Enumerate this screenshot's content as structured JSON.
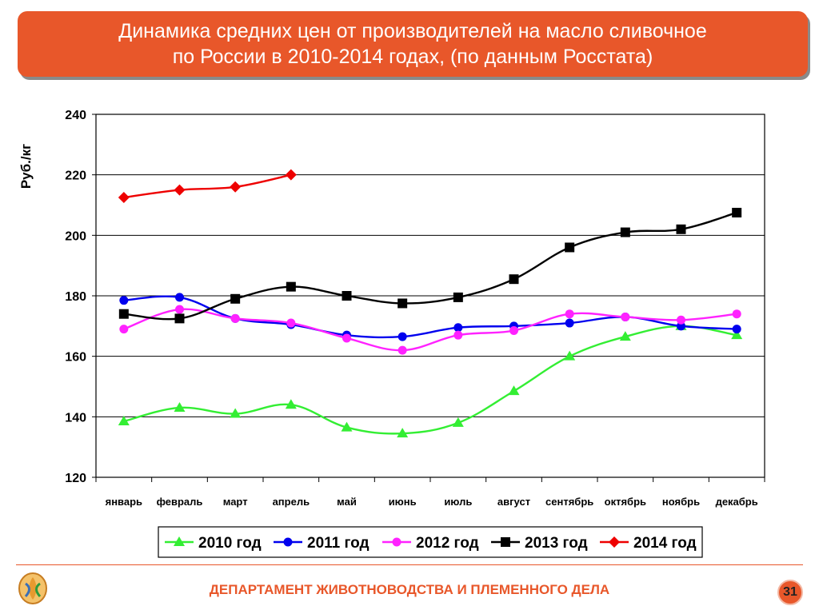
{
  "header": {
    "title_line1": "Динамика средних цен от производителей на масло сливочное",
    "title_line2": "по России в 2010-2014 годах, (по данным Росстата)"
  },
  "chart_data": {
    "type": "line",
    "title": "",
    "ylabel": "Руб./кг",
    "xlabel": "",
    "ylim": [
      120,
      240
    ],
    "yticks": [
      120,
      140,
      160,
      180,
      200,
      220,
      240
    ],
    "grid": true,
    "legend_placement": "bottom",
    "categories": [
      "январь",
      "февраль",
      "март",
      "апрель",
      "май",
      "июнь",
      "июль",
      "август",
      "сентябрь",
      "октябрь",
      "ноябрь",
      "декабрь"
    ],
    "series": [
      {
        "name": "2010 год",
        "color": "#33ee33",
        "marker": "triangle",
        "values": [
          138.5,
          143,
          141,
          144,
          136.5,
          134.5,
          138,
          148.5,
          160,
          166.5,
          170,
          167
        ]
      },
      {
        "name": "2011 год",
        "color": "#0000ee",
        "marker": "circle",
        "values": [
          178.5,
          179.5,
          172.5,
          170.5,
          167,
          166.5,
          169.5,
          170,
          171,
          173,
          170,
          169
        ]
      },
      {
        "name": "2012 год",
        "color": "#ff22ff",
        "marker": "circle",
        "values": [
          169,
          175.5,
          172.5,
          171,
          166,
          162,
          167,
          168.5,
          174,
          173,
          172,
          174
        ]
      },
      {
        "name": "2013 год",
        "color": "#000000",
        "marker": "square",
        "values": [
          174,
          172.5,
          179,
          183,
          180,
          177.5,
          179.5,
          185.5,
          196,
          201,
          202,
          207.5
        ]
      },
      {
        "name": "2014 год",
        "color": "#ee0000",
        "marker": "diamond",
        "values": [
          212.5,
          215,
          216,
          220,
          null,
          null,
          null,
          null,
          null,
          null,
          null,
          null
        ]
      }
    ]
  },
  "footer": {
    "department": "ДЕПАРТАМЕНТ ЖИВОТНОВОДСТВА И ПЛЕМЕННОГО ДЕЛА",
    "page_number": "31"
  }
}
